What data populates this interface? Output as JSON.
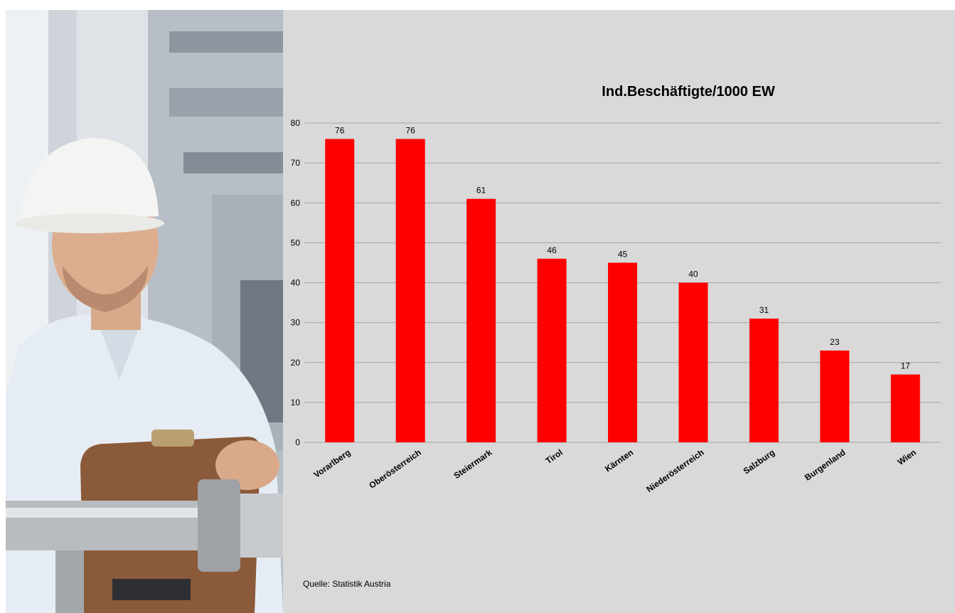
{
  "photo": {
    "alt": "Arbeiter mit Schutzhelm und Klemmbrett"
  },
  "colors": {
    "panel_background": "#d9d9d9",
    "bar": "#ff0000",
    "gridline": "#a6a6a6"
  },
  "chart_data": {
    "type": "bar",
    "title": "Ind.Beschäftigte/1000 EW",
    "xlabel": "",
    "ylabel": "",
    "categories": [
      "Vorarlberg",
      "Oberösterreich",
      "Steiermark",
      "Tirol",
      "Kärnten",
      "Niederösterreich",
      "Salzburg",
      "Burgenland",
      "Wien"
    ],
    "values": [
      76,
      76,
      61,
      46,
      45,
      40,
      31,
      23,
      17
    ],
    "ylim": [
      0,
      80
    ],
    "yticks": [
      0,
      10,
      20,
      30,
      40,
      50,
      60,
      70,
      80
    ],
    "grid": true,
    "legend": "none",
    "data_labels": true
  },
  "source": "Quelle: Statistik Austria"
}
